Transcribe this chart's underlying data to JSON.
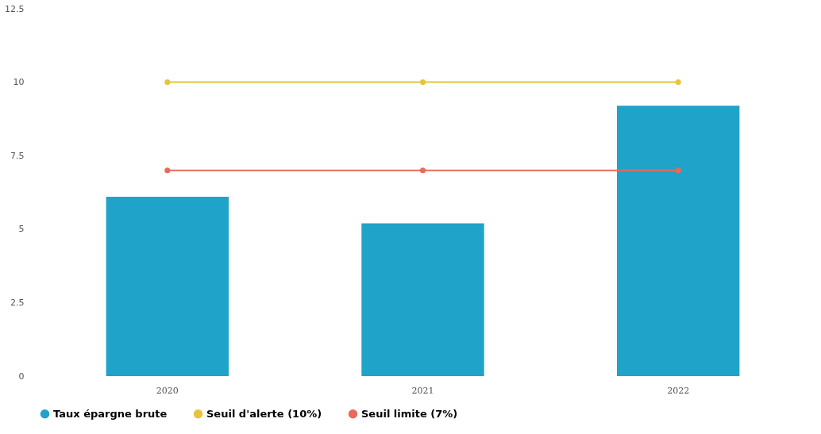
{
  "chart_data": {
    "type": "bar",
    "categories": [
      "2020",
      "2021",
      "2022"
    ],
    "series": [
      {
        "name": "Taux épargne brute",
        "color": "#1fa3c9",
        "values": [
          6.1,
          5.2,
          9.2
        ]
      },
      {
        "name": "Seuil d'alerte (10%)",
        "type": "line",
        "color": "#e6c43c",
        "values": [
          10,
          10,
          10
        ]
      },
      {
        "name": "Seuil limite (7%)",
        "type": "line",
        "color": "#e86a5c",
        "values": [
          7,
          7,
          7
        ]
      }
    ],
    "ylim": [
      0,
      12.5
    ],
    "yticks": [
      0,
      2.5,
      5,
      7.5,
      10,
      12.5
    ],
    "grid": false,
    "legend": "bottom",
    "marker": "circle"
  }
}
